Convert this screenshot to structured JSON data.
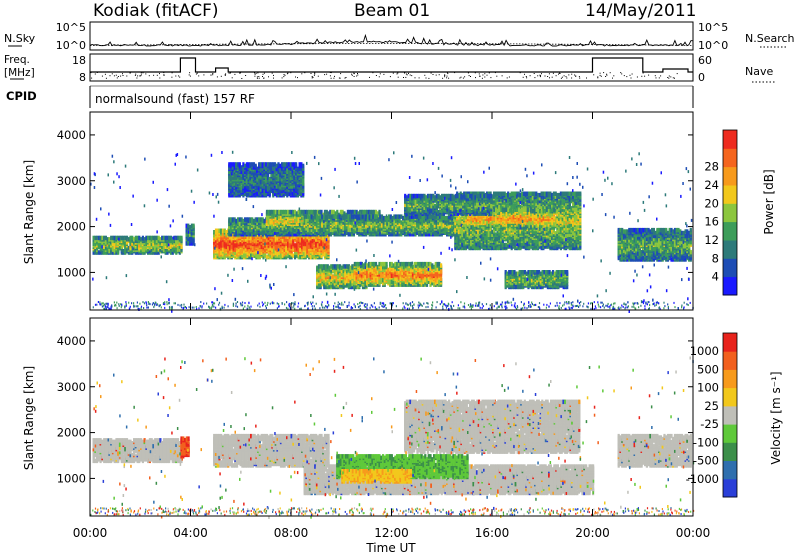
{
  "header": {
    "station": "Kodiak (fitACF)",
    "beam": "Beam 01",
    "date": "14/May/2011"
  },
  "summary_panel": {
    "nsky_label": "N.Sky",
    "nsearch_label": "N.Search",
    "noise_ticks": [
      "10^5",
      "10^0"
    ],
    "freq_label": "Freq.",
    "freq_unit": "[MHz]",
    "freq_ticks": [
      "18",
      "8"
    ],
    "nave_label": "Nave",
    "nave_ticks": [
      "60",
      "0"
    ],
    "cpid_label": "CPID",
    "cpid_text": "normalsound (fast) 157 RF"
  },
  "x_axis": {
    "label": "Time UT",
    "ticks": [
      "00:00",
      "04:00",
      "08:00",
      "12:00",
      "16:00",
      "20:00",
      "00:00"
    ],
    "range_hours": [
      0,
      24
    ]
  },
  "chart_data": [
    {
      "type": "heatmap",
      "quantity": "Power",
      "xlabel": "Time UT",
      "ylabel": "Slant Range [km]",
      "ylim": [
        180,
        4500
      ],
      "yticks": [
        1000,
        2000,
        3000,
        4000
      ],
      "colorbar": {
        "label": "Power [dB]",
        "ticks": [
          "4",
          "8",
          "12",
          "16",
          "20",
          "24",
          "28"
        ],
        "colors": [
          "#1a1aff",
          "#1d4db5",
          "#2d7a7a",
          "#3d9d5a",
          "#8cc63e",
          "#f2c81c",
          "#f79a1c",
          "#f5651e",
          "#ee2b1f"
        ]
      },
      "regions": [
        {
          "t": [
            0.1,
            3.6
          ],
          "r": [
            1450,
            1800
          ],
          "level": 0.45
        },
        {
          "t": [
            3.8,
            4.1
          ],
          "r": [
            1650,
            2050
          ],
          "level": 0.3
        },
        {
          "t": [
            4.9,
            9.5
          ],
          "r": [
            1350,
            1950
          ],
          "level": 0.75
        },
        {
          "t": [
            5.5,
            9.0
          ],
          "r": [
            1850,
            2200
          ],
          "level": 0.35
        },
        {
          "t": [
            5.5,
            8.5
          ],
          "r": [
            2700,
            3400
          ],
          "level": 0.25
        },
        {
          "t": [
            7.0,
            11.5
          ],
          "r": [
            1950,
            2350
          ],
          "level": 0.5
        },
        {
          "t": [
            8.5,
            14.5
          ],
          "r": [
            1850,
            2250
          ],
          "level": 0.4
        },
        {
          "t": [
            9.0,
            11.0
          ],
          "r": [
            700,
            1150
          ],
          "level": 0.55
        },
        {
          "t": [
            10.5,
            14.0
          ],
          "r": [
            750,
            1200
          ],
          "level": 0.65
        },
        {
          "t": [
            14.5,
            19.5
          ],
          "r": [
            1550,
            2750
          ],
          "level": 0.45
        },
        {
          "t": [
            15.0,
            18.5
          ],
          "r": [
            2000,
            2400
          ],
          "level": 0.6
        },
        {
          "t": [
            12.5,
            16.0
          ],
          "r": [
            2300,
            2700
          ],
          "level": 0.35
        },
        {
          "t": [
            16.5,
            19.0
          ],
          "r": [
            700,
            1050
          ],
          "level": 0.4
        },
        {
          "t": [
            21.0,
            23.9
          ],
          "r": [
            1300,
            1950
          ],
          "level": 0.35
        }
      ]
    },
    {
      "type": "heatmap",
      "quantity": "Velocity",
      "xlabel": "Time UT",
      "ylabel": "Slant Range [km]",
      "ylim": [
        180,
        4500
      ],
      "yticks": [
        1000,
        2000,
        3000,
        4000
      ],
      "colorbar": {
        "label": "Velocity [m s⁻¹]",
        "ticks": [
          "1000",
          "500",
          "100",
          "25",
          "-25",
          "-100",
          "-500",
          "-1000"
        ],
        "colors": [
          "#2a3fd8",
          "#2f6fae",
          "#3c8f4a",
          "#5fc93a",
          "#bfbfb8",
          "#f2c81c",
          "#f79a1c",
          "#f2601e",
          "#e8231c"
        ]
      },
      "regions": [
        {
          "t": [
            0.1,
            3.6
          ],
          "r": [
            1400,
            1850
          ],
          "kind": "gray"
        },
        {
          "t": [
            3.6,
            3.9
          ],
          "r": [
            1500,
            1900
          ],
          "kind": "orange"
        },
        {
          "t": [
            4.9,
            9.5
          ],
          "r": [
            1300,
            1950
          ],
          "kind": "gray"
        },
        {
          "t": [
            8.5,
            20.0
          ],
          "r": [
            700,
            1300
          ],
          "kind": "gray"
        },
        {
          "t": [
            12.5,
            19.5
          ],
          "r": [
            1600,
            2700
          ],
          "kind": "gray"
        },
        {
          "t": [
            9.8,
            15.0
          ],
          "r": [
            1050,
            1500
          ],
          "kind": "green"
        },
        {
          "t": [
            10.0,
            12.8
          ],
          "r": [
            950,
            1200
          ],
          "kind": "yellow"
        },
        {
          "t": [
            21.0,
            23.9
          ],
          "r": [
            1300,
            1950
          ],
          "kind": "gray"
        }
      ]
    }
  ]
}
